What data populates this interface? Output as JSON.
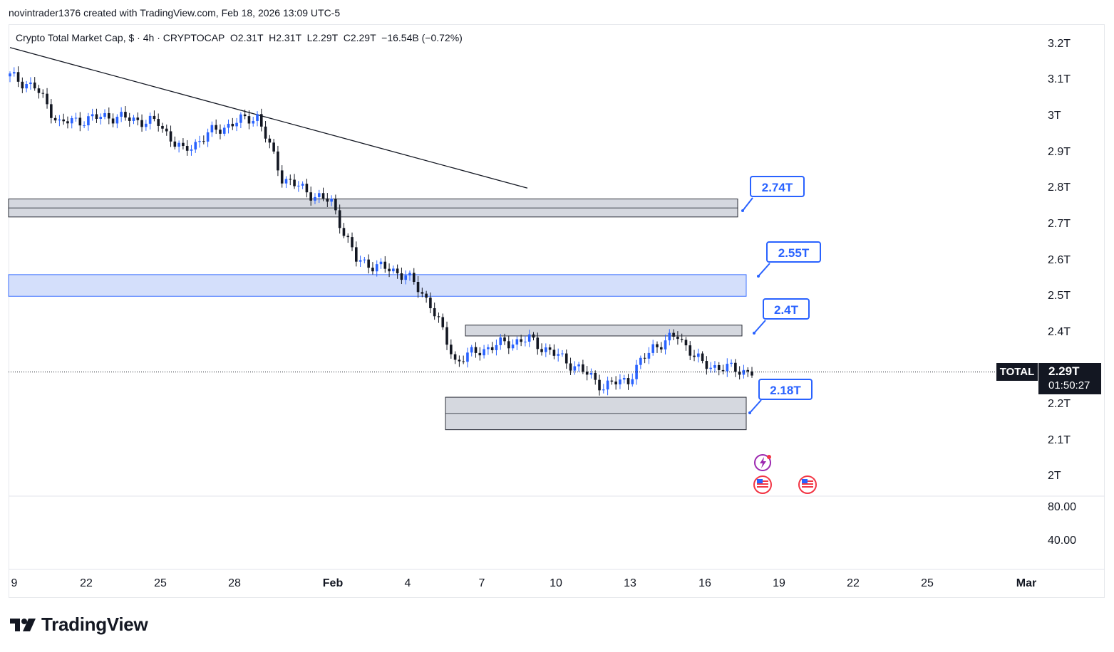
{
  "header": {
    "attribution": "novintrader1376 created with TradingView.com, Feb 18, 2026 13:09 UTC-5"
  },
  "legend": {
    "name": "Crypto Total Market Cap",
    "currency": "$",
    "interval": "4h",
    "exchange": "CRYPTOCAP",
    "open": "O2.31T",
    "high": "H2.31T",
    "low": "L2.29T",
    "close": "C2.29T",
    "change": "−16.54B (−0.72%)"
  },
  "price_axis": [
    "3.2T",
    "3.1T",
    "3T",
    "2.9T",
    "2.8T",
    "2.7T",
    "2.6T",
    "2.5T",
    "2.4T",
    "2.2T",
    "2.1T",
    "2T"
  ],
  "volume_axis": [
    "80.00",
    "40.00"
  ],
  "time_axis": [
    "9",
    "22",
    "25",
    "28",
    "Feb",
    "4",
    "7",
    "10",
    "13",
    "16",
    "19",
    "22",
    "25",
    "Mar"
  ],
  "symbol_tag": "TOTAL",
  "last_price": "2.29T",
  "countdown": "01:50:27",
  "callouts": [
    "2.74T",
    "2.55T",
    "2.4T",
    "2.18T"
  ],
  "logo": {
    "wordmark": "TradingView"
  },
  "colors": {
    "up": "#2962ff",
    "down": "#131722",
    "zone_gray": "#d1d4dc",
    "zone_blue": "#d0dcfb",
    "accent": "#2962ff"
  },
  "chart_data": {
    "type": "candlestick",
    "interval": "4h",
    "y_unit": "T",
    "ylim": [
      1.95,
      3.25
    ],
    "x": [
      "Jan 19",
      "Jan 20",
      "Jan 21",
      "Jan 22",
      "Jan 23",
      "Jan 24",
      "Jan 25",
      "Jan 26",
      "Jan 27",
      "Jan 28",
      "Jan 29",
      "Jan 30",
      "Jan 31",
      "Feb 1",
      "Feb 2",
      "Feb 3",
      "Feb 4",
      "Feb 5",
      "Feb 6",
      "Feb 7",
      "Feb 8",
      "Feb 9",
      "Feb 10",
      "Feb 11",
      "Feb 12",
      "Feb 13",
      "Feb 14",
      "Feb 15",
      "Feb 16",
      "Feb 17",
      "Feb 18"
    ],
    "close": [
      3.11,
      3.08,
      2.98,
      2.99,
      3.0,
      2.99,
      2.98,
      2.9,
      2.95,
      2.98,
      3.0,
      2.83,
      2.79,
      2.76,
      2.6,
      2.58,
      2.56,
      2.48,
      2.32,
      2.35,
      2.37,
      2.38,
      2.34,
      2.3,
      2.25,
      2.27,
      2.36,
      2.39,
      2.31,
      2.3,
      2.29
    ],
    "zones": [
      {
        "low": 2.72,
        "high": 2.77,
        "color": "gray"
      },
      {
        "low": 2.5,
        "high": 2.56,
        "color": "blue"
      },
      {
        "low": 2.39,
        "high": 2.42,
        "color": "gray"
      },
      {
        "low": 2.13,
        "high": 2.22,
        "color": "gray"
      }
    ],
    "trendline": {
      "from": {
        "x": "Jan 19",
        "y": 3.19
      },
      "to": {
        "x": "Feb 1",
        "y": 2.8
      }
    },
    "current_price": 2.29
  }
}
